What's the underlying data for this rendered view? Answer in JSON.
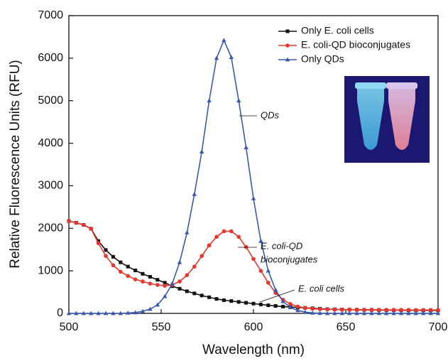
{
  "chart_data": {
    "type": "line",
    "xlabel": "Wavelength (nm)",
    "ylabel": "Relative Fluorescence Units (RFU)",
    "x": [
      500,
      504,
      508,
      512,
      516,
      520,
      524,
      528,
      532,
      536,
      540,
      544,
      548,
      552,
      556,
      560,
      564,
      568,
      572,
      576,
      580,
      584,
      588,
      592,
      596,
      600,
      604,
      608,
      612,
      616,
      620,
      624,
      628,
      632,
      636,
      640,
      644,
      648,
      652,
      656,
      660,
      664,
      668,
      672,
      676,
      680,
      684,
      688,
      692,
      696,
      700
    ],
    "series": [
      {
        "name": "Only E. coli cells",
        "color": "#111111",
        "marker": "square",
        "values": [
          2170,
          2130,
          2080,
          1990,
          1700,
          1490,
          1330,
          1200,
          1100,
          1010,
          930,
          860,
          790,
          720,
          640,
          580,
          520,
          470,
          420,
          380,
          340,
          310,
          290,
          270,
          250,
          230,
          210,
          190,
          175,
          160,
          150,
          140,
          130,
          120,
          110,
          100,
          95,
          90,
          88,
          85,
          82,
          80,
          78,
          76,
          75,
          74,
          73,
          72,
          71,
          70,
          70
        ]
      },
      {
        "name": "E. coli-QD bioconjugates",
        "color": "#e8352d",
        "marker": "circle",
        "values": [
          2170,
          2130,
          2080,
          1990,
          1650,
          1350,
          1130,
          980,
          880,
          800,
          750,
          700,
          670,
          650,
          670,
          750,
          900,
          1100,
          1350,
          1600,
          1800,
          1930,
          1930,
          1800,
          1560,
          1280,
          1000,
          720,
          480,
          320,
          220,
          160,
          130,
          110,
          100,
          95,
          92,
          90,
          88,
          86,
          85,
          84,
          83,
          82,
          81,
          80,
          80,
          79,
          78,
          78,
          78
        ]
      },
      {
        "name": "Only QDs",
        "color": "#3b58ad",
        "marker": "triangle",
        "values": [
          0,
          0,
          0,
          0,
          0,
          0,
          0,
          0,
          10,
          20,
          50,
          100,
          200,
          400,
          700,
          1200,
          1900,
          2800,
          3800,
          5000,
          6000,
          6420,
          6020,
          5000,
          3900,
          2700,
          1700,
          1000,
          550,
          280,
          140,
          70,
          30,
          10,
          5,
          0,
          0,
          0,
          0,
          0,
          0,
          0,
          0,
          0,
          0,
          0,
          0,
          0,
          0,
          0,
          0
        ]
      }
    ],
    "xlim": [
      500,
      700
    ],
    "xticks": [
      500,
      550,
      600,
      650,
      700
    ],
    "ylim": [
      0,
      7000
    ],
    "yticks": [
      0,
      1000,
      2000,
      3000,
      4000,
      5000,
      6000,
      7000
    ],
    "legend": "upper right",
    "annotations": [
      "QDs",
      "E. coli-QD",
      "bioconjugates",
      "E. coli cells"
    ]
  }
}
